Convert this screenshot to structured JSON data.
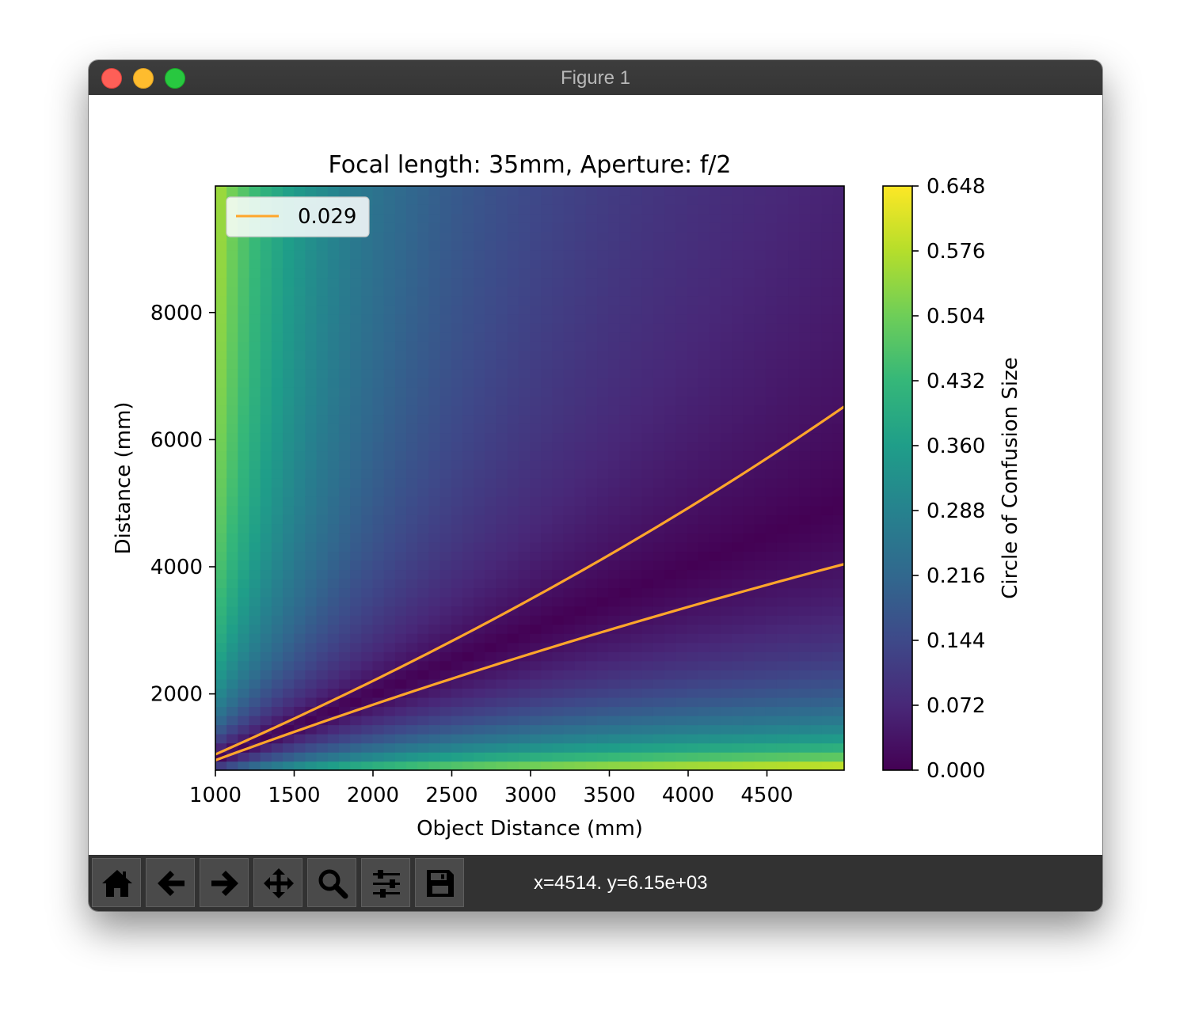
{
  "window": {
    "title": "Figure 1"
  },
  "toolbar": {
    "tools": [
      {
        "name": "home-button",
        "icon": "home-icon"
      },
      {
        "name": "back-button",
        "icon": "arrow-left-icon"
      },
      {
        "name": "forward-button",
        "icon": "arrow-right-icon"
      },
      {
        "name": "pan-button",
        "icon": "move-icon"
      },
      {
        "name": "zoom-button",
        "icon": "magnifier-icon"
      },
      {
        "name": "configure-subplots-button",
        "icon": "sliders-icon"
      },
      {
        "name": "save-button",
        "icon": "floppy-disk-icon"
      }
    ],
    "coordinates": "x=4514. y=6.15e+03"
  },
  "chart_data": {
    "type": "heatmap",
    "title": "Focal length: 35mm, Aperture: f/2",
    "xlabel": "Object Distance (mm)",
    "ylabel": "Distance (mm)",
    "xlim": [
      1000,
      4990
    ],
    "ylim": [
      800,
      9990
    ],
    "x_ticks": [
      1000,
      1500,
      2000,
      2500,
      3000,
      3500,
      4000,
      4500
    ],
    "y_ticks": [
      2000,
      4000,
      6000,
      8000
    ],
    "focal_length_mm": 35,
    "aperture_f_number": 2,
    "colormap": "viridis",
    "colorbar": {
      "label": "Circle of Confusion Size",
      "min": 0.0,
      "max": 0.648,
      "ticks": [
        "0.000",
        "0.072",
        "0.144",
        "0.216",
        "0.288",
        "0.360",
        "0.432",
        "0.504",
        "0.576",
        "0.648"
      ]
    },
    "contour": {
      "level": 0.029,
      "legend_label": "0.029",
      "color": "#ffa62b",
      "legend_position": "upper left"
    },
    "grid": false
  }
}
